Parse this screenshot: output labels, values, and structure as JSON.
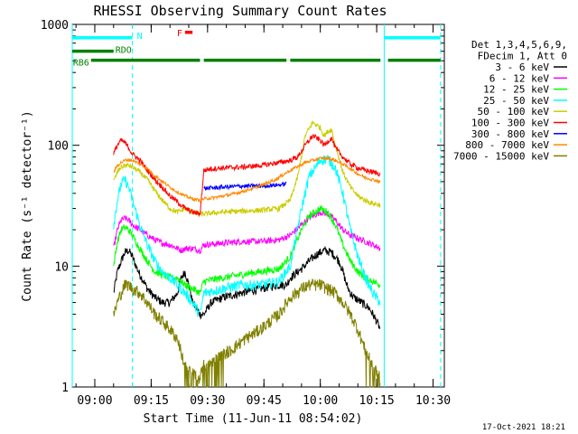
{
  "chart_data": {
    "type": "line",
    "title": "RHESSI Observing Summary Count Rates",
    "xlabel": "Start Time (11-Jun-11 08:54:02)",
    "ylabel": "Count Rate (s⁻¹ detector⁻¹)",
    "yscale": "log",
    "ylim": [
      1,
      1000
    ],
    "xlim_minutes": [
      0,
      99
    ],
    "x_ticks": [
      {
        "m": 6,
        "label": "09:00"
      },
      {
        "m": 21,
        "label": "09:15"
      },
      {
        "m": 36,
        "label": "09:30"
      },
      {
        "m": 51,
        "label": "09:45"
      },
      {
        "m": 66,
        "label": "10:00"
      },
      {
        "m": 81,
        "label": "10:15"
      },
      {
        "m": 96,
        "label": "10:30"
      }
    ],
    "y_ticks": [
      {
        "v": 1,
        "label": "1"
      },
      {
        "v": 10,
        "label": "10"
      },
      {
        "v": 100,
        "label": "100"
      },
      {
        "v": 1000,
        "label": "1000"
      }
    ],
    "legend_header": [
      "Det 1,3,4,5,6,9,",
      "FDecim 1, Att 0"
    ],
    "legend_position": "right",
    "timestamp": "17-Oct-2021 18:21",
    "vlines": [
      {
        "m": 0,
        "style": "solid",
        "color": "#00ffff"
      },
      {
        "m": 16,
        "style": "dashed",
        "color": "#00ffff"
      },
      {
        "m": 83,
        "style": "solid",
        "color": "#00ffff"
      },
      {
        "m": 98,
        "style": "dashed",
        "color": "#00ffff"
      }
    ],
    "flag_bars": [
      {
        "label": "N",
        "color": "#00ffff",
        "y": 775,
        "segments": [
          [
            0,
            16
          ],
          [
            83,
            98
          ]
        ]
      },
      {
        "label": "RDO",
        "color": "#008000",
        "y": 600,
        "segments": [
          [
            0,
            11
          ]
        ]
      },
      {
        "label": "RB6",
        "color": "#008000",
        "y": 505,
        "segments": [
          [
            5,
            34
          ],
          [
            35,
            57
          ],
          [
            58,
            82
          ],
          [
            84,
            98
          ]
        ]
      },
      {
        "label": "F",
        "color": "#ff0000",
        "y": 860,
        "segments": [
          [
            30,
            32
          ]
        ]
      }
    ],
    "series": [
      {
        "name": "3 - 6 keV",
        "color": "#000000",
        "noise": 0.08,
        "points": [
          [
            11,
            6
          ],
          [
            12,
            9
          ],
          [
            13,
            11
          ],
          [
            14,
            13
          ],
          [
            15,
            13.5
          ],
          [
            16,
            12
          ],
          [
            17,
            10
          ],
          [
            18,
            8.5
          ],
          [
            19,
            7.5
          ],
          [
            20,
            6.5
          ],
          [
            22,
            5.5
          ],
          [
            24,
            5
          ],
          [
            26,
            5
          ],
          [
            28,
            6
          ],
          [
            29,
            8
          ],
          [
            30,
            9
          ],
          [
            31,
            7
          ],
          [
            32,
            5
          ],
          [
            33,
            4.5
          ],
          [
            34,
            4
          ],
          [
            35,
            4
          ],
          [
            37,
            5
          ],
          [
            40,
            5.5
          ],
          [
            45,
            6
          ],
          [
            50,
            6.5
          ],
          [
            55,
            7
          ],
          [
            57,
            7
          ],
          [
            58,
            8
          ],
          [
            61,
            9.5
          ],
          [
            63,
            11
          ],
          [
            65,
            12.5
          ],
          [
            67,
            13.5
          ],
          [
            69,
            13
          ],
          [
            71,
            11
          ],
          [
            72,
            9
          ],
          [
            73,
            7
          ],
          [
            74,
            6
          ],
          [
            75,
            5.5
          ],
          [
            77,
            5
          ],
          [
            79,
            4.5
          ],
          [
            80,
            4
          ],
          [
            81,
            3.5
          ],
          [
            82,
            3
          ]
        ]
      },
      {
        "name": "6 - 12 keV",
        "color": "#ff00ff",
        "noise": 0.06,
        "points": [
          [
            11,
            14
          ],
          [
            12,
            20
          ],
          [
            13,
            24
          ],
          [
            14,
            25
          ],
          [
            15,
            24
          ],
          [
            16,
            22
          ],
          [
            18,
            20
          ],
          [
            20,
            18
          ],
          [
            22,
            16.5
          ],
          [
            24,
            15.5
          ],
          [
            26,
            15
          ],
          [
            28,
            14
          ],
          [
            29,
            13.5
          ],
          [
            30,
            14
          ],
          [
            32,
            14
          ],
          [
            34,
            13.5
          ],
          [
            35,
            15
          ],
          [
            40,
            15.5
          ],
          [
            45,
            16
          ],
          [
            50,
            16
          ],
          [
            55,
            16.5
          ],
          [
            58,
            18
          ],
          [
            61,
            22
          ],
          [
            63,
            25
          ],
          [
            66,
            28
          ],
          [
            68,
            27
          ],
          [
            70,
            24
          ],
          [
            72,
            20
          ],
          [
            74,
            18
          ],
          [
            76,
            17
          ],
          [
            78,
            16
          ],
          [
            80,
            15
          ],
          [
            82,
            14
          ]
        ]
      },
      {
        "name": "12 - 25 keV",
        "color": "#00ff00",
        "noise": 0.07,
        "points": [
          [
            11,
            10
          ],
          [
            12,
            16
          ],
          [
            13,
            20
          ],
          [
            14,
            21
          ],
          [
            15,
            20
          ],
          [
            16,
            18
          ],
          [
            18,
            14
          ],
          [
            20,
            11
          ],
          [
            22,
            9
          ],
          [
            24,
            8.5
          ],
          [
            26,
            8
          ],
          [
            28,
            8
          ],
          [
            30,
            7
          ],
          [
            32,
            6.5
          ],
          [
            34,
            6
          ],
          [
            35,
            7.5
          ],
          [
            40,
            8
          ],
          [
            45,
            8.5
          ],
          [
            50,
            9
          ],
          [
            55,
            9.5
          ],
          [
            58,
            12
          ],
          [
            61,
            20
          ],
          [
            63,
            26
          ],
          [
            66,
            30
          ],
          [
            68,
            28
          ],
          [
            70,
            22
          ],
          [
            72,
            15
          ],
          [
            74,
            11
          ],
          [
            76,
            9
          ],
          [
            78,
            8
          ],
          [
            80,
            7.5
          ],
          [
            82,
            7
          ]
        ]
      },
      {
        "name": "25 - 50 keV",
        "color": "#00ffff",
        "noise": 0.1,
        "points": [
          [
            11,
            22
          ],
          [
            12,
            35
          ],
          [
            13,
            48
          ],
          [
            14,
            52
          ],
          [
            15,
            45
          ],
          [
            16,
            35
          ],
          [
            17,
            28
          ],
          [
            18,
            22
          ],
          [
            20,
            15
          ],
          [
            22,
            11
          ],
          [
            24,
            9
          ],
          [
            26,
            8
          ],
          [
            28,
            7
          ],
          [
            30,
            6
          ],
          [
            32,
            5
          ],
          [
            34,
            4
          ],
          [
            35,
            6
          ],
          [
            40,
            6.5
          ],
          [
            45,
            7
          ],
          [
            50,
            7
          ],
          [
            55,
            7.5
          ],
          [
            58,
            10
          ],
          [
            61,
            30
          ],
          [
            63,
            55
          ],
          [
            66,
            75
          ],
          [
            68,
            78
          ],
          [
            70,
            65
          ],
          [
            72,
            40
          ],
          [
            74,
            20
          ],
          [
            76,
            12
          ],
          [
            78,
            8
          ],
          [
            80,
            6
          ],
          [
            82,
            5
          ]
        ]
      },
      {
        "name": "50 - 100 keV",
        "color": "#cccc00",
        "noise": 0.05,
        "points": [
          [
            11,
            50
          ],
          [
            12,
            60
          ],
          [
            13,
            66
          ],
          [
            14,
            68
          ],
          [
            15,
            68
          ],
          [
            16,
            66
          ],
          [
            18,
            60
          ],
          [
            20,
            52
          ],
          [
            22,
            42
          ],
          [
            24,
            35
          ],
          [
            26,
            30
          ],
          [
            28,
            28
          ],
          [
            30,
            30
          ],
          [
            32,
            28
          ],
          [
            34,
            27
          ],
          [
            35,
            27
          ],
          [
            37,
            27.5
          ],
          [
            40,
            28
          ],
          [
            45,
            28.5
          ],
          [
            50,
            29
          ],
          [
            55,
            30
          ],
          [
            58,
            35
          ],
          [
            60,
            55
          ],
          [
            62,
            120
          ],
          [
            64,
            155
          ],
          [
            66,
            140
          ],
          [
            67,
            120
          ],
          [
            68,
            130
          ],
          [
            69,
            135
          ],
          [
            70,
            100
          ],
          [
            72,
            60
          ],
          [
            74,
            45
          ],
          [
            76,
            38
          ],
          [
            78,
            35
          ],
          [
            80,
            33
          ],
          [
            82,
            32
          ]
        ]
      },
      {
        "name": "100 - 300 keV",
        "color": "#ff0000",
        "noise": 0.05,
        "points": [
          [
            11,
            85
          ],
          [
            12,
            100
          ],
          [
            13,
            110
          ],
          [
            14,
            105
          ],
          [
            15,
            95
          ],
          [
            16,
            85
          ],
          [
            18,
            75
          ],
          [
            20,
            62
          ],
          [
            22,
            52
          ],
          [
            24,
            45
          ],
          [
            26,
            38
          ],
          [
            28,
            34
          ],
          [
            30,
            30
          ],
          [
            32,
            28
          ],
          [
            34,
            27
          ],
          [
            35,
            62
          ],
          [
            37,
            64
          ],
          [
            40,
            65
          ],
          [
            45,
            66
          ],
          [
            50,
            68
          ],
          [
            55,
            72
          ],
          [
            58,
            75
          ],
          [
            60,
            80
          ],
          [
            62,
            100
          ],
          [
            64,
            120
          ],
          [
            66,
            110
          ],
          [
            67,
            100
          ],
          [
            68,
            108
          ],
          [
            69,
            115
          ],
          [
            70,
            95
          ],
          [
            72,
            80
          ],
          [
            74,
            70
          ],
          [
            76,
            65
          ],
          [
            78,
            62
          ],
          [
            80,
            60
          ],
          [
            82,
            58
          ]
        ]
      },
      {
        "name": "300 - 800 keV",
        "color": "#0000ff",
        "noise": 0.04,
        "points": [
          [
            35,
            44
          ],
          [
            40,
            45
          ],
          [
            45,
            46
          ],
          [
            50,
            46
          ],
          [
            55,
            47
          ],
          [
            57,
            48
          ]
        ]
      },
      {
        "name": "800 - 7000 keV",
        "color": "#ff8800",
        "noise": 0.03,
        "points": [
          [
            11,
            60
          ],
          [
            12,
            68
          ],
          [
            13,
            72
          ],
          [
            14,
            75
          ],
          [
            15,
            76
          ],
          [
            16,
            75
          ],
          [
            18,
            70
          ],
          [
            20,
            64
          ],
          [
            22,
            56
          ],
          [
            24,
            50
          ],
          [
            26,
            45
          ],
          [
            28,
            41
          ],
          [
            30,
            38
          ],
          [
            32,
            36
          ],
          [
            34,
            35
          ],
          [
            35,
            36
          ],
          [
            38,
            37
          ],
          [
            42,
            39
          ],
          [
            46,
            42
          ],
          [
            50,
            46
          ],
          [
            54,
            52
          ],
          [
            58,
            62
          ],
          [
            62,
            72
          ],
          [
            66,
            78
          ],
          [
            68,
            78
          ],
          [
            70,
            75
          ],
          [
            72,
            70
          ],
          [
            74,
            64
          ],
          [
            76,
            58
          ],
          [
            78,
            54
          ],
          [
            80,
            52
          ],
          [
            82,
            50
          ]
        ]
      },
      {
        "name": "7000 - 15000 keV",
        "color": "#808000",
        "noise": 0.12,
        "points": [
          [
            11,
            4
          ],
          [
            12,
            5
          ],
          [
            13,
            6
          ],
          [
            14,
            7
          ],
          [
            15,
            7
          ],
          [
            16,
            6.5
          ],
          [
            18,
            6
          ],
          [
            20,
            5
          ],
          [
            22,
            4
          ],
          [
            24,
            3.5
          ],
          [
            26,
            3
          ],
          [
            28,
            2.5
          ],
          [
            30,
            1.5
          ],
          [
            32,
            1.3
          ],
          [
            34,
            1.2
          ],
          [
            35,
            1.5
          ],
          [
            38,
            1.7
          ],
          [
            42,
            2
          ],
          [
            46,
            2.5
          ],
          [
            50,
            3
          ],
          [
            55,
            4
          ],
          [
            58,
            5.5
          ],
          [
            61,
            6.5
          ],
          [
            63,
            7
          ],
          [
            66,
            7
          ],
          [
            68,
            6.5
          ],
          [
            70,
            6
          ],
          [
            72,
            5
          ],
          [
            74,
            4
          ],
          [
            76,
            3
          ],
          [
            78,
            2
          ],
          [
            80,
            1.5
          ],
          [
            82,
            1.2
          ]
        ]
      }
    ]
  }
}
